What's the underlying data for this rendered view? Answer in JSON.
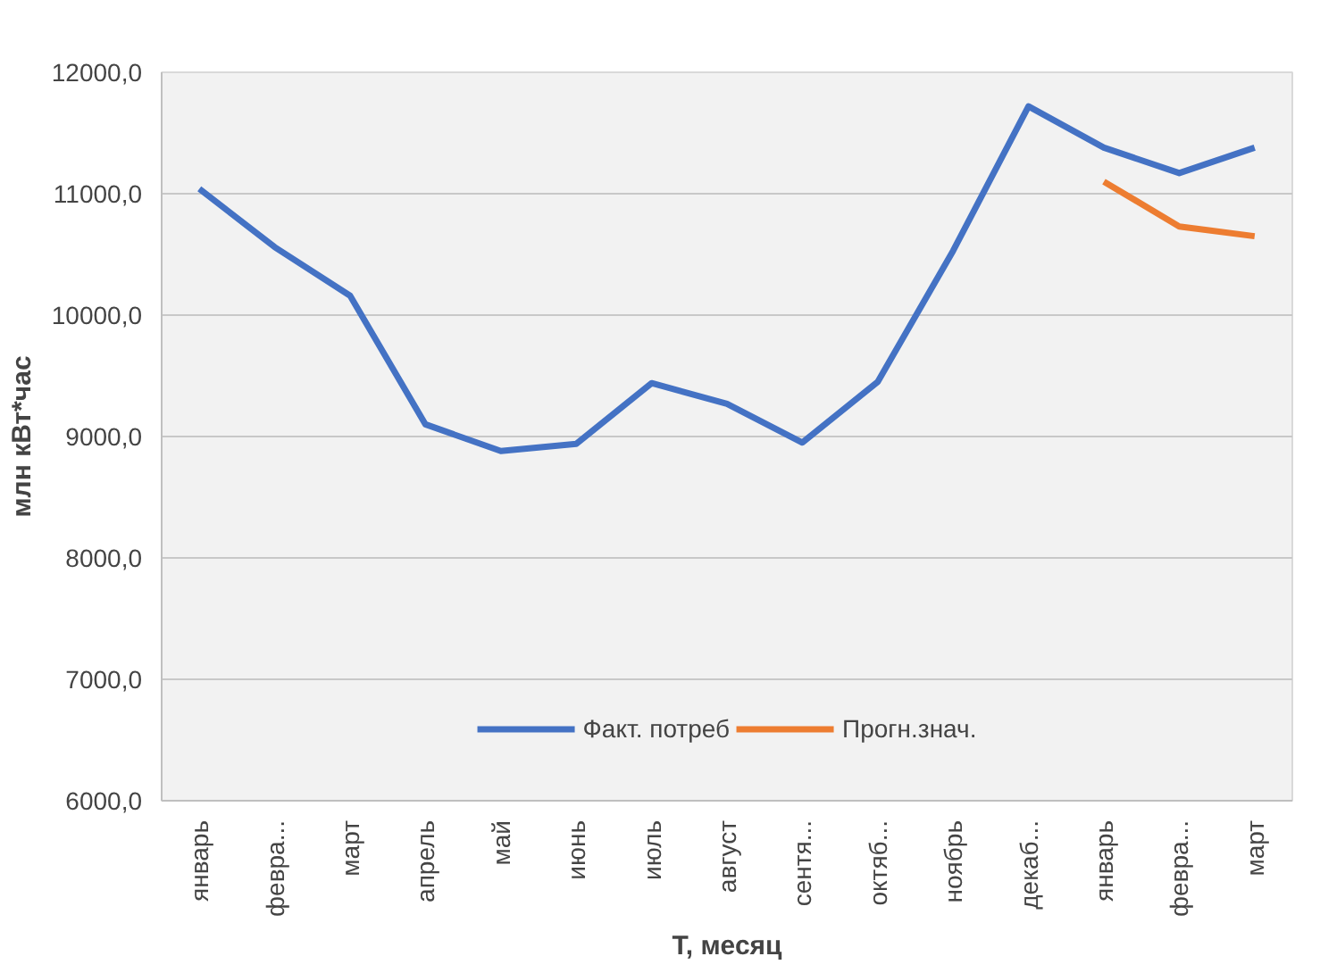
{
  "chart_data": {
    "type": "line",
    "xlabel": "Т, месяц",
    "ylabel": "млн кВт*час",
    "categories": [
      "январь",
      "февра...",
      "март",
      "апрель",
      "май",
      "июнь",
      "июль",
      "август",
      "сентя...",
      "октяб...",
      "ноябрь",
      "декаб...",
      "январь",
      "февра...",
      "март"
    ],
    "series": [
      {
        "name": "Факт. потреб",
        "color": "#4472c4",
        "values": [
          11040,
          10560,
          10160,
          9100,
          8880,
          8940,
          9440,
          9270,
          8950,
          9450,
          10530,
          11720,
          11380,
          11170,
          11380
        ]
      },
      {
        "name": "Прогн.знач.",
        "color": "#ed7d31",
        "values": [
          null,
          null,
          null,
          null,
          null,
          null,
          null,
          null,
          null,
          null,
          null,
          null,
          11100,
          10730,
          10650
        ]
      }
    ],
    "ylim": [
      6000,
      12000
    ],
    "yticks": [
      {
        "value": 6000,
        "label": "6000,0"
      },
      {
        "value": 7000,
        "label": "7000,0"
      },
      {
        "value": 8000,
        "label": "8000,0"
      },
      {
        "value": 9000,
        "label": "9000,0"
      },
      {
        "value": 10000,
        "label": "10000,0"
      },
      {
        "value": 11000,
        "label": "11000,0"
      },
      {
        "value": 12000,
        "label": "12000,0"
      }
    ],
    "grid": "y",
    "legend": "bottom",
    "marker": "none",
    "line_style": "solid"
  }
}
